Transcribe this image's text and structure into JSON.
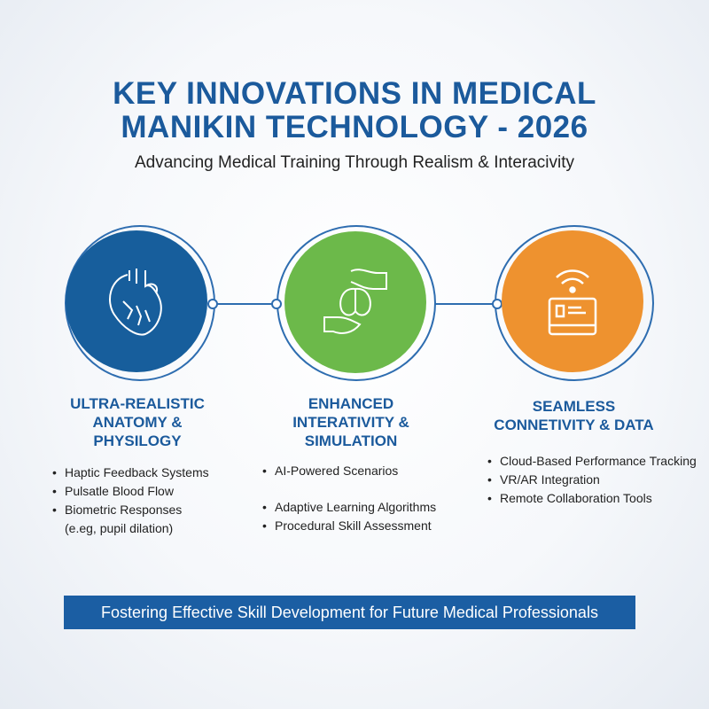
{
  "header": {
    "title_line1": "KEY INNOVATIONS IN MEDICAL",
    "title_line2": "MANIKIN TECHNOLOGY - 2026",
    "subtitle": "Advancing Medical Training Through Realism & Interacivity"
  },
  "colors": {
    "blue": "#175e9c",
    "green": "#6cb94a",
    "orange": "#ee922f",
    "accent": "#1b5a9c"
  },
  "pillars": [
    {
      "icon": "heart-icon",
      "heading_lines": [
        "ULTRA-REALISTIC",
        "ANATOMY &",
        "PHYSILOGY"
      ],
      "bullets": [
        "Haptic Feedback Systems",
        "Pulsatle Blood Flow",
        "Biometric Responses"
      ],
      "bullet_note": "(e.eg, pupil dilation)"
    },
    {
      "icon": "brain-hands-icon",
      "heading_lines": [
        "ENHANCED",
        "INTERATIVITY &",
        "SIMULATION"
      ],
      "bullets": [
        "AI-Powered Scenarios",
        "Adaptive Learning Algorithms",
        "Procedural Skill Assessment"
      ]
    },
    {
      "icon": "wifi-tablet-icon",
      "heading_lines": [
        "SEAMLESS",
        "CONNETIVITY & DATA"
      ],
      "bullets": [
        "Cloud-Based Performance Tracking",
        "VR/AR Integration",
        "Remote Collaboration Tools"
      ]
    }
  ],
  "footer": {
    "banner": "Fostering Effective Skill Development for Future Medical Professionals"
  }
}
